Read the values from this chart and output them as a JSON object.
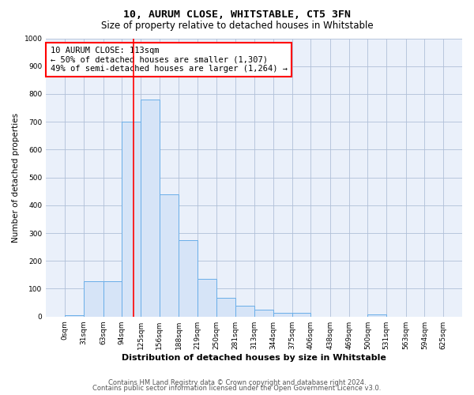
{
  "title": "10, AURUM CLOSE, WHITSTABLE, CT5 3FN",
  "subtitle": "Size of property relative to detached houses in Whitstable",
  "xlabel": "Distribution of detached houses by size in Whitstable",
  "ylabel": "Number of detached properties",
  "bin_edges": [
    0,
    31,
    63,
    94,
    125,
    156,
    188,
    219,
    250,
    281,
    313,
    344,
    375,
    406,
    438,
    469,
    500,
    531,
    563,
    594,
    625
  ],
  "bar_heights": [
    5,
    128,
    128,
    700,
    780,
    440,
    275,
    135,
    68,
    38,
    25,
    12,
    12,
    0,
    0,
    0,
    8,
    0,
    0,
    0
  ],
  "bar_color": "#d6e4f7",
  "bar_edge_color": "#6aaee8",
  "red_line_x": 113,
  "ylim": [
    0,
    1000
  ],
  "yticks": [
    0,
    100,
    200,
    300,
    400,
    500,
    600,
    700,
    800,
    900,
    1000
  ],
  "annotation_title": "10 AURUM CLOSE: 113sqm",
  "annotation_line1": "← 50% of detached houses are smaller (1,307)",
  "annotation_line2": "49% of semi-detached houses are larger (1,264) →",
  "footer_line1": "Contains HM Land Registry data © Crown copyright and database right 2024.",
  "footer_line2": "Contains public sector information licensed under the Open Government Licence v3.0.",
  "background_color": "#ffffff",
  "plot_bg_color": "#eaf0fa",
  "grid_color": "#b0bfd8",
  "title_fontsize": 9.5,
  "subtitle_fontsize": 8.5,
  "xlabel_fontsize": 8,
  "ylabel_fontsize": 7.5,
  "tick_fontsize": 6.5,
  "annotation_fontsize": 7.5,
  "footer_fontsize": 6
}
